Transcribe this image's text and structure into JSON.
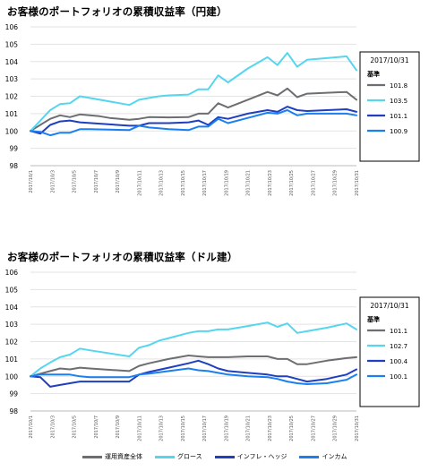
{
  "colors": {
    "total": "#6d6e71",
    "growth": "#55d6ee",
    "inflation": "#1f3fbf",
    "income": "#1b7ff0",
    "grid": "#e3e3e3",
    "axis": "#666666"
  },
  "chart_data": [
    {
      "type": "line",
      "title": "お客様のポートフォリオの累積収益率（円建）",
      "x": [
        "2017/10/1",
        "2017/10/3",
        "2017/10/5",
        "2017/10/7",
        "2017/10/9",
        "2017/10/11",
        "2017/10/13",
        "2017/10/15",
        "2017/10/17",
        "2017/10/19",
        "2017/10/21",
        "2017/10/23",
        "2017/10/25",
        "2017/10/27",
        "2017/10/29",
        "2017/10/31"
      ],
      "ylim": [
        98,
        106
      ],
      "yticks": [
        98,
        99,
        100,
        101,
        102,
        103,
        104,
        105,
        106
      ],
      "grid": true,
      "legend_box": {
        "date": "2017/10/31",
        "heading": "基準",
        "values": [
          "101.8",
          "103.5",
          "101.1",
          "100.9"
        ]
      },
      "series": [
        {
          "key": "total",
          "points": [
            [
              1,
              100
            ],
            [
              2,
              100.35
            ],
            [
              3,
              100.7
            ],
            [
              4,
              100.9
            ],
            [
              5,
              100.8
            ],
            [
              6,
              100.95
            ],
            [
              7,
              100.9
            ],
            [
              8,
              100.85
            ],
            [
              9,
              100.75
            ],
            [
              11,
              100.65
            ],
            [
              12,
              100.7
            ],
            [
              13,
              100.8
            ],
            [
              15,
              100.78
            ],
            [
              17,
              100.8
            ],
            [
              18,
              101.0
            ],
            [
              19,
              101.0
            ],
            [
              20,
              101.6
            ],
            [
              21,
              101.35
            ],
            [
              23,
              101.8
            ],
            [
              25,
              102.25
            ],
            [
              26,
              102.05
            ],
            [
              27,
              102.45
            ],
            [
              28,
              101.95
            ],
            [
              29,
              102.15
            ],
            [
              31,
              102.2
            ],
            [
              33,
              102.25
            ],
            [
              34,
              101.8
            ]
          ]
        },
        {
          "key": "growth",
          "points": [
            [
              1,
              100
            ],
            [
              3,
              101.2
            ],
            [
              4,
              101.55
            ],
            [
              5,
              101.6
            ],
            [
              6,
              102.0
            ],
            [
              7,
              101.9
            ],
            [
              11,
              101.5
            ],
            [
              12,
              101.8
            ],
            [
              13,
              101.9
            ],
            [
              14,
              102.0
            ],
            [
              15,
              102.05
            ],
            [
              17,
              102.1
            ],
            [
              18,
              102.4
            ],
            [
              19,
              102.4
            ],
            [
              20,
              103.2
            ],
            [
              21,
              102.8
            ],
            [
              23,
              103.6
            ],
            [
              25,
              104.25
            ],
            [
              26,
              103.8
            ],
            [
              27,
              104.5
            ],
            [
              28,
              103.7
            ],
            [
              29,
              104.1
            ],
            [
              31,
              104.2
            ],
            [
              33,
              104.3
            ],
            [
              34,
              103.5
            ]
          ]
        },
        {
          "key": "inflation",
          "points": [
            [
              1,
              100
            ],
            [
              2,
              99.85
            ],
            [
              3,
              100.35
            ],
            [
              4,
              100.55
            ],
            [
              5,
              100.6
            ],
            [
              6,
              100.5
            ],
            [
              11,
              100.3
            ],
            [
              12,
              100.3
            ],
            [
              13,
              100.45
            ],
            [
              15,
              100.45
            ],
            [
              17,
              100.5
            ],
            [
              18,
              100.6
            ],
            [
              19,
              100.35
            ],
            [
              20,
              100.8
            ],
            [
              21,
              100.7
            ],
            [
              23,
              101.0
            ],
            [
              25,
              101.2
            ],
            [
              26,
              101.1
            ],
            [
              27,
              101.4
            ],
            [
              28,
              101.2
            ],
            [
              29,
              101.15
            ],
            [
              31,
              101.2
            ],
            [
              33,
              101.25
            ],
            [
              34,
              101.1
            ]
          ]
        },
        {
          "key": "income",
          "points": [
            [
              1,
              100
            ],
            [
              2,
              99.95
            ],
            [
              3,
              99.75
            ],
            [
              4,
              99.9
            ],
            [
              5,
              99.9
            ],
            [
              6,
              100.1
            ],
            [
              7,
              100.1
            ],
            [
              11,
              100.05
            ],
            [
              12,
              100.3
            ],
            [
              13,
              100.2
            ],
            [
              14,
              100.15
            ],
            [
              15,
              100.1
            ],
            [
              17,
              100.05
            ],
            [
              18,
              100.25
            ],
            [
              19,
              100.25
            ],
            [
              20,
              100.7
            ],
            [
              21,
              100.45
            ],
            [
              23,
              100.75
            ],
            [
              25,
              101.05
            ],
            [
              26,
              101.0
            ],
            [
              27,
              101.2
            ],
            [
              28,
              100.9
            ],
            [
              29,
              101.0
            ],
            [
              31,
              101.0
            ],
            [
              33,
              101.0
            ],
            [
              34,
              100.9
            ]
          ]
        }
      ]
    },
    {
      "type": "line",
      "title": "お客様のポートフォリオの累積収益率（ドル建）",
      "x": [
        "2017/10/1",
        "2017/10/3",
        "2017/10/5",
        "2017/10/7",
        "2017/10/9",
        "2017/10/11",
        "2017/10/13",
        "2017/10/15",
        "2017/10/17",
        "2017/10/19",
        "2017/10/21",
        "2017/10/23",
        "2017/10/25",
        "2017/10/27",
        "2017/10/29",
        "2017/10/31"
      ],
      "ylim": [
        98,
        106
      ],
      "yticks": [
        98,
        99,
        100,
        101,
        102,
        103,
        104,
        105,
        106
      ],
      "grid": true,
      "legend_box": {
        "date": "2017/10/31",
        "heading": "基準",
        "values": [
          "101.1",
          "102.7",
          "100.4",
          "100.1"
        ]
      },
      "series": [
        {
          "key": "total",
          "points": [
            [
              1,
              100
            ],
            [
              3,
              100.3
            ],
            [
              4,
              100.45
            ],
            [
              5,
              100.4
            ],
            [
              6,
              100.5
            ],
            [
              7,
              100.45
            ],
            [
              11,
              100.3
            ],
            [
              12,
              100.6
            ],
            [
              13,
              100.75
            ],
            [
              15,
              101.0
            ],
            [
              17,
              101.2
            ],
            [
              18,
              101.15
            ],
            [
              19,
              101.1
            ],
            [
              21,
              101.1
            ],
            [
              23,
              101.15
            ],
            [
              25,
              101.15
            ],
            [
              26,
              101.0
            ],
            [
              27,
              101.0
            ],
            [
              28,
              100.7
            ],
            [
              29,
              100.7
            ],
            [
              31,
              100.9
            ],
            [
              33,
              101.05
            ],
            [
              34,
              101.1
            ]
          ]
        },
        {
          "key": "growth",
          "points": [
            [
              1,
              100
            ],
            [
              2,
              100.45
            ],
            [
              3,
              100.8
            ],
            [
              4,
              101.1
            ],
            [
              5,
              101.25
            ],
            [
              6,
              101.6
            ],
            [
              7,
              101.5
            ],
            [
              11,
              101.15
            ],
            [
              12,
              101.65
            ],
            [
              13,
              101.8
            ],
            [
              14,
              102.05
            ],
            [
              15,
              102.2
            ],
            [
              17,
              102.5
            ],
            [
              18,
              102.6
            ],
            [
              19,
              102.6
            ],
            [
              20,
              102.7
            ],
            [
              21,
              102.7
            ],
            [
              23,
              102.9
            ],
            [
              25,
              103.1
            ],
            [
              26,
              102.85
            ],
            [
              27,
              103.05
            ],
            [
              28,
              102.5
            ],
            [
              29,
              102.6
            ],
            [
              31,
              102.8
            ],
            [
              33,
              103.05
            ],
            [
              34,
              102.7
            ]
          ]
        },
        {
          "key": "inflation",
          "points": [
            [
              1,
              100
            ],
            [
              2,
              99.95
            ],
            [
              3,
              99.4
            ],
            [
              4,
              99.5
            ],
            [
              5,
              99.6
            ],
            [
              6,
              99.7
            ],
            [
              7,
              99.7
            ],
            [
              11,
              99.7
            ],
            [
              12,
              100.1
            ],
            [
              13,
              100.25
            ],
            [
              15,
              100.5
            ],
            [
              17,
              100.75
            ],
            [
              18,
              100.9
            ],
            [
              19,
              100.7
            ],
            [
              20,
              100.45
            ],
            [
              21,
              100.3
            ],
            [
              23,
              100.2
            ],
            [
              25,
              100.1
            ],
            [
              26,
              100.0
            ],
            [
              27,
              100.0
            ],
            [
              28,
              99.85
            ],
            [
              29,
              99.7
            ],
            [
              31,
              99.85
            ],
            [
              33,
              100.1
            ],
            [
              34,
              100.4
            ]
          ]
        },
        {
          "key": "income",
          "points": [
            [
              1,
              100
            ],
            [
              2,
              100.1
            ],
            [
              3,
              100.1
            ],
            [
              4,
              100.1
            ],
            [
              5,
              100.1
            ],
            [
              6,
              100.0
            ],
            [
              7,
              99.95
            ],
            [
              11,
              99.95
            ],
            [
              12,
              100.1
            ],
            [
              13,
              100.15
            ],
            [
              15,
              100.3
            ],
            [
              17,
              100.45
            ],
            [
              18,
              100.35
            ],
            [
              19,
              100.3
            ],
            [
              20,
              100.2
            ],
            [
              21,
              100.1
            ],
            [
              23,
              100.0
            ],
            [
              25,
              99.95
            ],
            [
              26,
              99.85
            ],
            [
              27,
              99.7
            ],
            [
              28,
              99.6
            ],
            [
              29,
              99.55
            ],
            [
              31,
              99.6
            ],
            [
              33,
              99.8
            ],
            [
              34,
              100.1
            ]
          ]
        }
      ]
    }
  ],
  "legend": [
    {
      "key": "total",
      "label": "運用資産全体"
    },
    {
      "key": "growth",
      "label": "グロース"
    },
    {
      "key": "inflation",
      "label": "インフレ・ヘッジ"
    },
    {
      "key": "income",
      "label": "インカム"
    }
  ]
}
